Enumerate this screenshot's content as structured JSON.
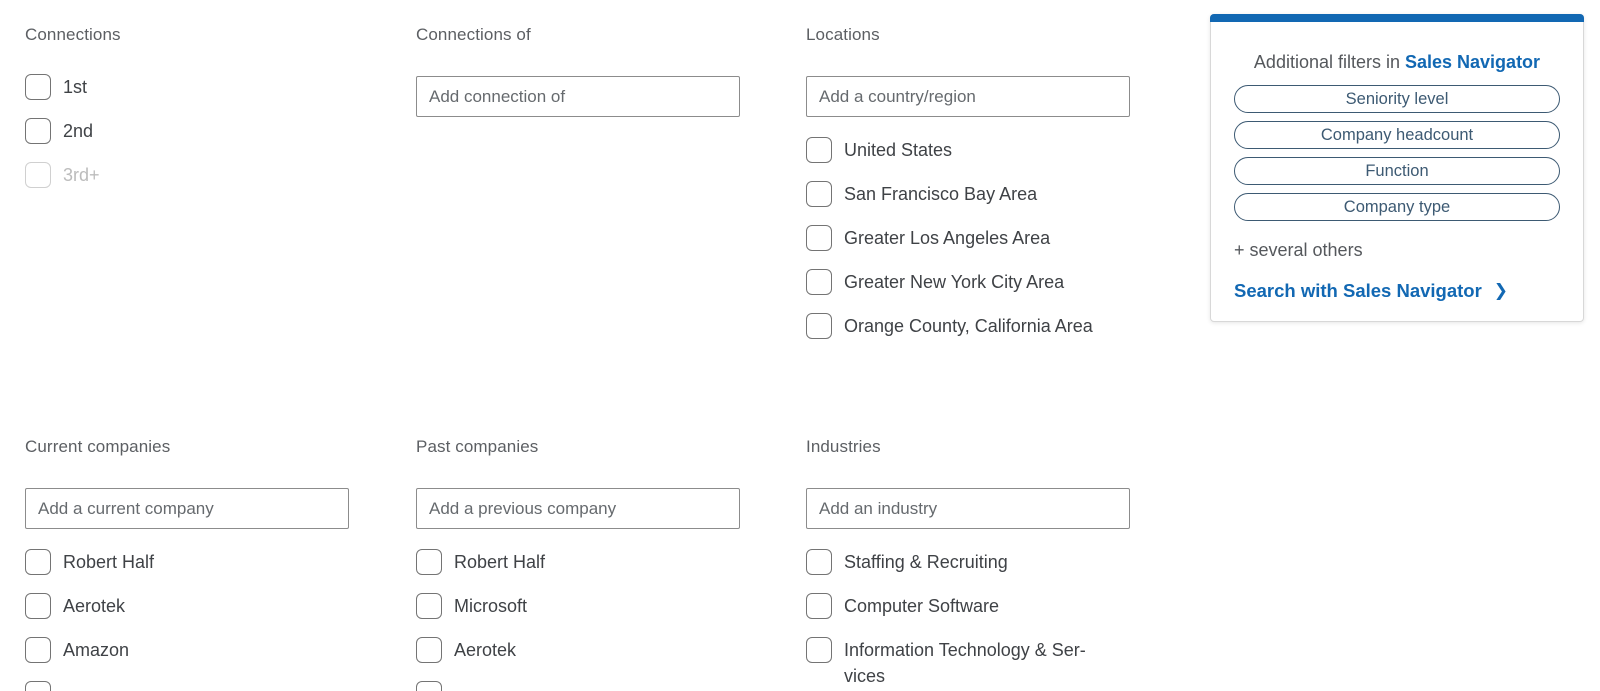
{
  "colors": {
    "accent_blue": "#1268b3",
    "pill_blue": "#3d5a73",
    "section_title_gray": "#5c5f63",
    "label_gray": "#3f4246"
  },
  "filters": {
    "connections": {
      "title": "Connections",
      "options": [
        {
          "label": "1st",
          "disabled": false
        },
        {
          "label": "2nd",
          "disabled": false
        },
        {
          "label": "3rd+",
          "disabled": true
        }
      ]
    },
    "connections_of": {
      "title": "Connections of",
      "input_placeholder": "Add connection of"
    },
    "locations": {
      "title": "Locations",
      "input_placeholder": "Add a country/region",
      "options": [
        "United States",
        "San Francisco Bay Area",
        "Greater Los Angeles Area",
        "Greater New York City Area",
        "Orange County, California Area"
      ]
    },
    "current_companies": {
      "title": "Current companies",
      "input_placeholder": "Add a current company",
      "options": [
        "Robert Half",
        "Aerotek",
        "Amazon"
      ]
    },
    "past_companies": {
      "title": "Past companies",
      "input_placeholder": "Add a previous company",
      "options": [
        "Robert Half",
        "Microsoft",
        "Aerotek"
      ]
    },
    "industries": {
      "title": "Industries",
      "input_placeholder": "Add an industry",
      "options": [
        "Staffing & Recruiting",
        "Computer Software",
        "Information Technology & Ser-\nvices"
      ]
    }
  },
  "sales_navigator_promo": {
    "title_prefix": "Additional filters in ",
    "title_brand": "Sales Navigator",
    "pills": [
      "Seniority level",
      "Company headcount",
      "Function",
      "Company type"
    ],
    "others_note": "+ several others",
    "cta_label": "Search with Sales Navigator",
    "cta_chevron": "❯"
  }
}
